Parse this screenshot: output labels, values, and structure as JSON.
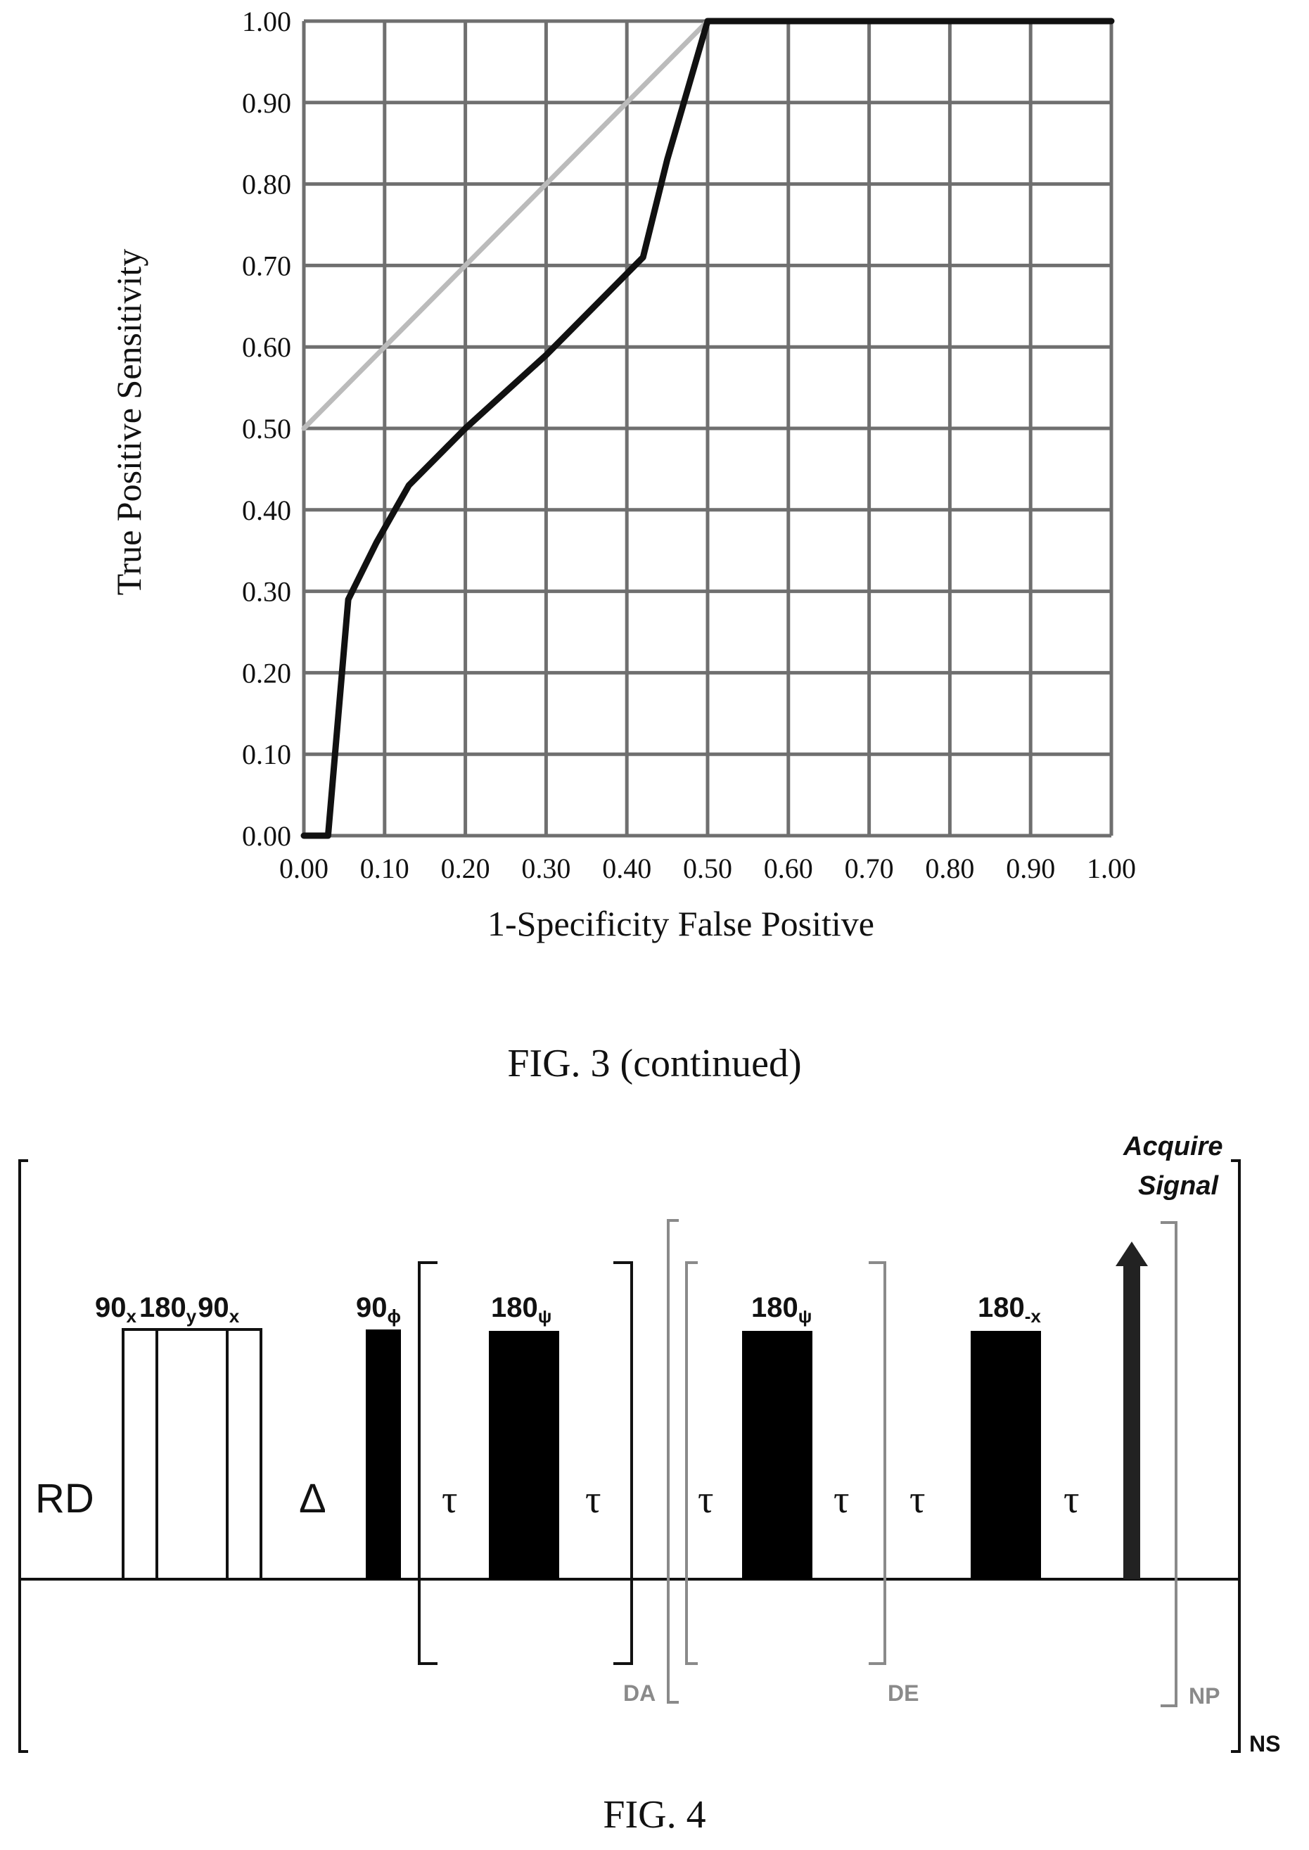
{
  "chart_data": {
    "type": "line",
    "xlabel": "1-Specificity False Positive",
    "ylabel": "True Positive Sensitivity",
    "xlim": [
      0,
      1
    ],
    "ylim": [
      0,
      1
    ],
    "x_ticks": [
      "0.00",
      "0.10",
      "0.20",
      "0.30",
      "0.40",
      "0.50",
      "0.60",
      "0.70",
      "0.80",
      "0.90",
      "1.00"
    ],
    "y_ticks": [
      "0.00",
      "0.10",
      "0.20",
      "0.30",
      "0.40",
      "0.50",
      "0.60",
      "0.70",
      "0.80",
      "0.90",
      "1.00"
    ],
    "grid": true,
    "series": [
      {
        "color": "#111111",
        "x": [
          0.0,
          0.03,
          0.055,
          0.09,
          0.13,
          0.2,
          0.3,
          0.42,
          0.45,
          0.5,
          1.0
        ],
        "y": [
          0.0,
          0.0,
          0.29,
          0.36,
          0.43,
          0.5,
          0.59,
          0.71,
          0.83,
          1.0,
          1.0
        ]
      },
      {
        "color": "#bbbbbb",
        "x": [
          0.0,
          0.5
        ],
        "y": [
          0.5,
          1.0
        ]
      }
    ]
  },
  "captions": {
    "fig3": "FIG. 3 (continued)",
    "fig4": "FIG. 4"
  },
  "pulse_sequence": {
    "rd": "RD",
    "delta": "Δ",
    "tau": "τ",
    "composite": {
      "a": "90",
      "a_sub": "x",
      "b": "180",
      "b_sub": "y",
      "c": "90",
      "c_sub": "x"
    },
    "p90": {
      "base": "90",
      "sub": "ϕ"
    },
    "p180a": {
      "base": "180",
      "sub": "ψ"
    },
    "p180b": {
      "base": "180",
      "sub": "ψ"
    },
    "p180c": {
      "base": "180",
      "sub": "-x"
    },
    "acquire_line1": "Acquire",
    "acquire_line2": "Signal",
    "loops": {
      "da": "DA",
      "de": "DE",
      "np": "NP",
      "ns": "NS"
    },
    "colors": {
      "loop_gray": "#8a8a8a",
      "pulse_fill": "#000000"
    }
  }
}
